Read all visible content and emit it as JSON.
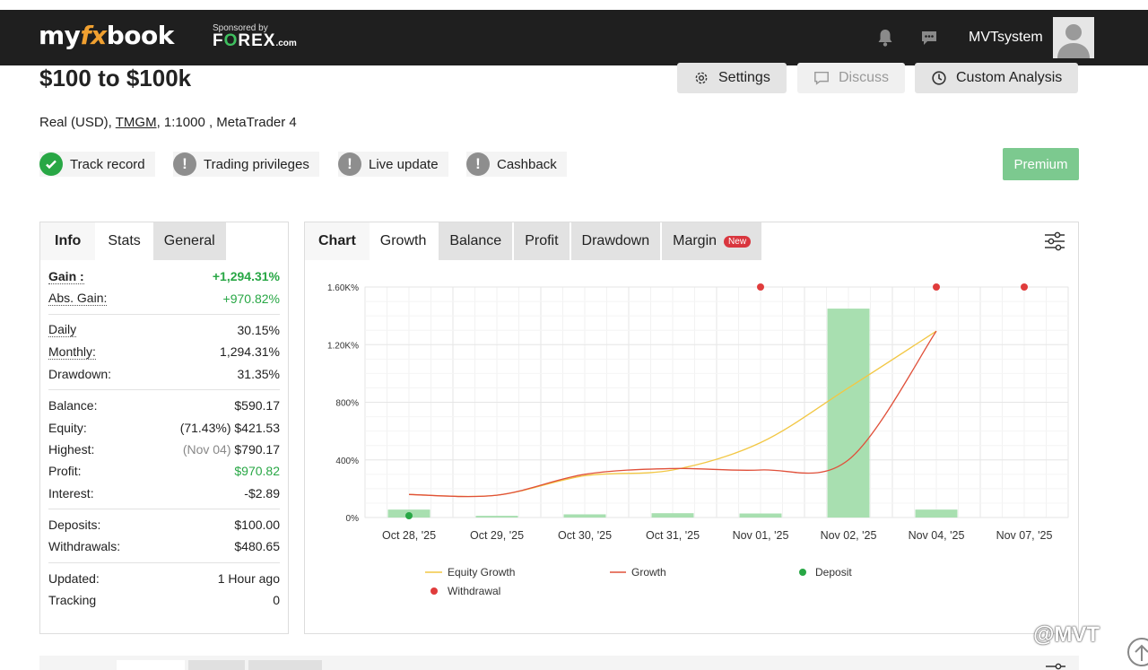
{
  "navbar": {
    "logo": {
      "my": "my",
      "fx": "fx",
      "book": "book"
    },
    "sponsor": {
      "by": "Sponsored by",
      "brand_f": "F",
      "brand_o": "O",
      "brand_rest": "REX",
      "brand_tld": ".com"
    },
    "username": "MVTsystem",
    "icons": [
      "bell-icon",
      "chat-icon"
    ]
  },
  "header": {
    "title": "$100 to $100k",
    "buttons": [
      {
        "label": "Settings",
        "icon": "gear-icon",
        "enabled": true
      },
      {
        "label": "Discuss",
        "icon": "comment-icon",
        "enabled": false
      },
      {
        "label": "Custom Analysis",
        "icon": "clock-icon",
        "enabled": true
      }
    ],
    "account": {
      "prefix": "Real (USD), ",
      "broker": "TMGM",
      "suffix": ", 1:1000 , MetaTrader 4"
    }
  },
  "badges": [
    {
      "label": "Track record",
      "status": "ok"
    },
    {
      "label": "Trading privileges",
      "status": "warn"
    },
    {
      "label": "Live update",
      "status": "warn"
    },
    {
      "label": "Cashback",
      "status": "warn"
    }
  ],
  "premium_label": "Premium",
  "left_tabs": [
    "Info",
    "Stats",
    "General"
  ],
  "stats": {
    "gain": {
      "label": "Gain :",
      "value": "+1,294.31%"
    },
    "abs_gain": {
      "label": "Abs. Gain:",
      "value": "+970.82%"
    },
    "daily": {
      "label": "Daily",
      "value": "30.15%"
    },
    "monthly": {
      "label": "Monthly:",
      "value": "1,294.31%"
    },
    "drawdown": {
      "label": "Drawdown:",
      "value": "31.35%"
    },
    "balance": {
      "label": "Balance:",
      "value": "$590.17"
    },
    "equity": {
      "label": "Equity:",
      "pct": "(71.43%)",
      "value": "$421.53"
    },
    "highest": {
      "label": "Highest:",
      "date": "(Nov 04)",
      "value": "$790.17"
    },
    "profit": {
      "label": "Profit:",
      "value": "$970.82"
    },
    "interest": {
      "label": "Interest:",
      "value": "-$2.89"
    },
    "deposits": {
      "label": "Deposits:",
      "value": "$100.00"
    },
    "withdrawals": {
      "label": "Withdrawals:",
      "value": "$480.65"
    },
    "updated": {
      "label": "Updated:",
      "value": "1 Hour ago"
    },
    "tracking": {
      "label": "Tracking",
      "value": "0"
    }
  },
  "chart_tabs": {
    "chart": "Chart",
    "growth": "Growth",
    "balance": "Balance",
    "profit": "Profit",
    "drawdown": "Drawdown",
    "margin": "Margin",
    "new": "New"
  },
  "colors": {
    "equity": "#f2c744",
    "growth": "#e0503a",
    "deposit": "#28a745",
    "withdrawal": "#e03c3c",
    "bar": "#a8dfb0",
    "accent_green": "#28a745"
  },
  "chart_data": {
    "type": "line",
    "categories": [
      "Oct 28, '25",
      "Oct 29, '25",
      "Oct 30, '25",
      "Oct 31, '25",
      "Nov 01, '25",
      "Nov 02, '25",
      "Nov 04, '25",
      "Nov 07, '25"
    ],
    "ytick_labels": [
      "0%",
      "400%",
      "800%",
      "1.20K%",
      "1.60K%"
    ],
    "ylim": [
      0,
      1600
    ],
    "series": [
      {
        "name": "Equity Growth",
        "values": [
          160,
          155,
          290,
          330,
          520,
          900,
          1294,
          null
        ]
      },
      {
        "name": "Growth",
        "values": [
          160,
          155,
          300,
          340,
          330,
          400,
          1294,
          null
        ]
      }
    ],
    "bars": [
      55,
      12,
      22,
      30,
      28,
      1450,
      55,
      0
    ],
    "deposits": [
      0
    ],
    "withdrawals": [
      4,
      6,
      7
    ],
    "withdrawals_y": 1600,
    "legend": {
      "equity": "Equity Growth",
      "growth": "Growth",
      "deposit": "Deposit",
      "withdrawal": "Withdrawal"
    }
  },
  "watermark": "@MVT"
}
